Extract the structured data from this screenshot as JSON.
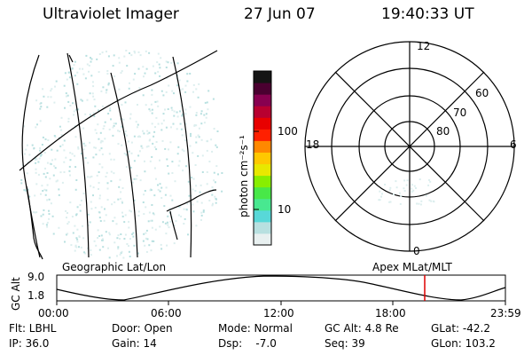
{
  "header": {
    "title": "Ultraviolet Imager",
    "date": "27 Jun 07",
    "time": "19:40:33 UT"
  },
  "colorbar": {
    "unit_label": "photon cm⁻²s⁻¹",
    "ticks": [
      "100",
      "10"
    ],
    "colors": [
      "#e8f0f0",
      "#b8e0e0",
      "#58d8d8",
      "#48e890",
      "#48e848",
      "#88ee00",
      "#e8e800",
      "#ffc800",
      "#ff8800",
      "#ff2000",
      "#e80000",
      "#b80030",
      "#880050",
      "#4a0030",
      "#141414"
    ]
  },
  "polar": {
    "labels": {
      "top": "12",
      "left": "18",
      "right": "6",
      "bottom": "0"
    },
    "lat_labels": [
      "60",
      "70",
      "80"
    ]
  },
  "timeline": {
    "left_label": "Geographic Lat/Lon",
    "right_label": "Apex MLat/MLT",
    "axis_label": "GC Alt",
    "y_labels": [
      "9.0",
      "1.8"
    ],
    "x_labels": [
      "00:00",
      "06:00",
      "12:00",
      "18:00",
      "23:59"
    ],
    "marker_color": "#dd0000"
  },
  "info": {
    "row1": [
      "Flt: LBHL",
      "Door: Open",
      "Mode: Normal",
      "GC Alt: 4.8 Re",
      "GLat: -42.2"
    ],
    "row2": [
      "IP: 36.0",
      "Gain: 14",
      "Dsp:    -7.0",
      "Seq: 39",
      "GLon: 103.2"
    ]
  }
}
